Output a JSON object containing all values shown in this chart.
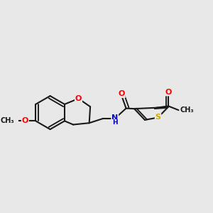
{
  "bg_color": "#e8e8e8",
  "bond_color": "#1a1a1a",
  "bond_width": 1.5,
  "atom_colors": {
    "O": "#ff0000",
    "N": "#0000cd",
    "S": "#ccaa00",
    "C": "#1a1a1a",
    "H": "#1a1a1a"
  },
  "font_size": 8,
  "figsize": [
    3.0,
    3.0
  ],
  "dpi": 100
}
